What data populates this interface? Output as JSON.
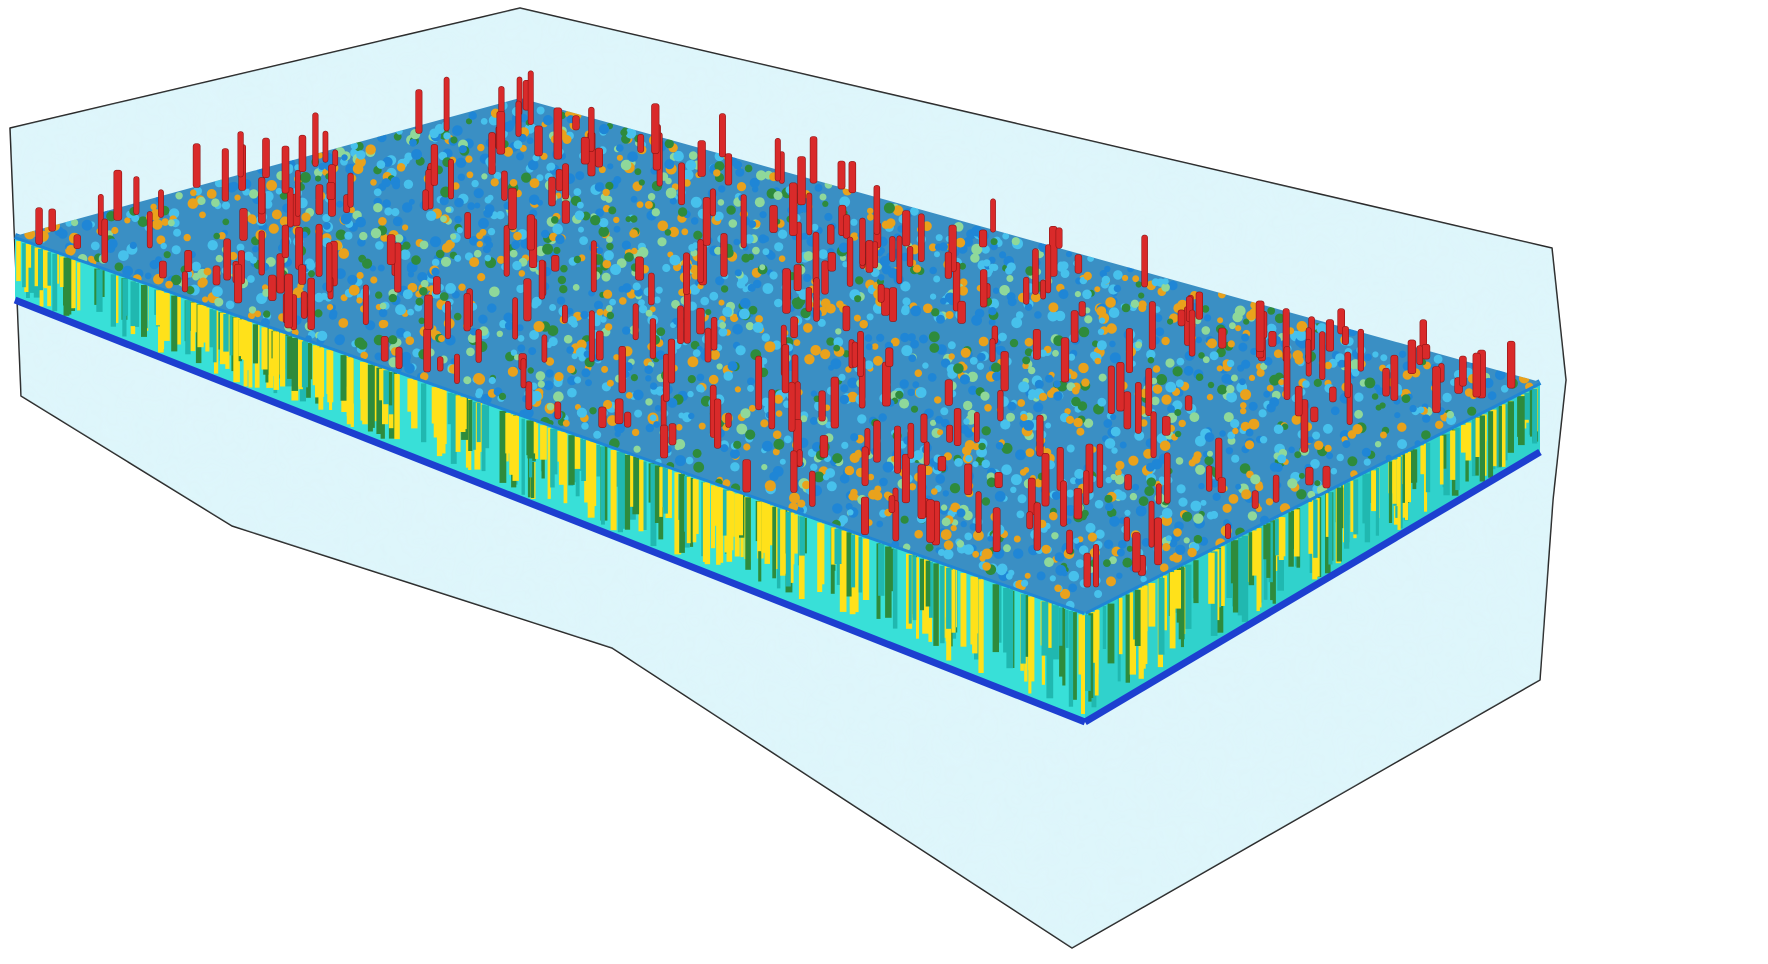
{
  "image": {
    "subject": "membrane-bilayer-simulation-box",
    "colors": {
      "background": "#ffffff",
      "water": "#def6fb",
      "water_edge": "#222222",
      "top_surface": "#3a8fc4",
      "headgroup_blue": "#1f86d6",
      "headgroup_lightblue": "#47c1ec",
      "headgroup_orange": "#e9a21c",
      "headgroup_green": "#2e8b3c",
      "headgroup_palegreen": "#8fd89a",
      "cholesterol_red": "#d92a2a",
      "tail_yellow": "#ffe11a",
      "tail_cyan": "#38e0d8",
      "tail_teal": "#20b8b0",
      "lower_head_blue": "#1d3fd0"
    },
    "components": [
      "water-box-icon",
      "lipid-bilayer-icon",
      "lipid-headgroups-icon",
      "cholesterol-molecules-icon",
      "lipid-tails-icon"
    ]
  }
}
